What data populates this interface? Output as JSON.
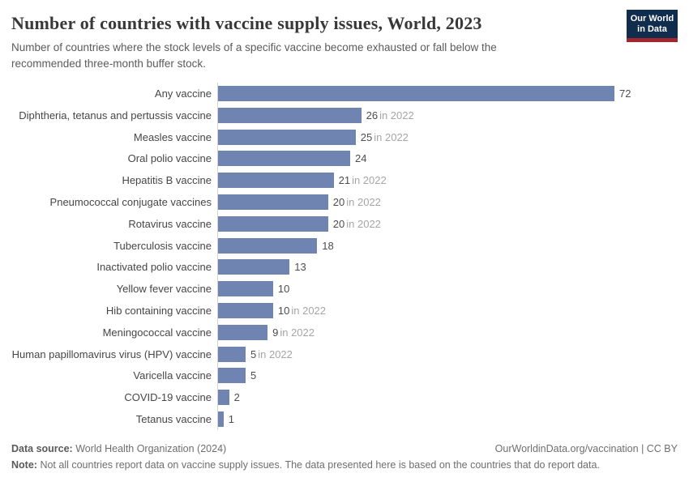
{
  "header": {
    "title": "Number of countries with vaccine supply issues, World, 2023",
    "subtitle": "Number of countries where the stock levels of a specific vaccine become exhausted or fall below the recommended three-month buffer stock.",
    "logo": {
      "line1": "Our World",
      "line2": "in Data"
    }
  },
  "chart_data": {
    "type": "bar",
    "orientation": "horizontal",
    "title": "Number of countries with vaccine supply issues, World, 2023",
    "categories": [
      "Any vaccine",
      "Diphtheria, tetanus and pertussis vaccine",
      "Measles vaccine",
      "Oral polio vaccine",
      "Hepatitis B vaccine",
      "Pneumococcal conjugate vaccines",
      "Rotavirus vaccine",
      "Tuberculosis vaccine",
      "Inactivated polio vaccine",
      "Yellow fever vaccine",
      "Hib containing vaccine",
      "Meningococcal vaccine",
      "Human papillomavirus virus (HPV) vaccine",
      "Varicella vaccine",
      "COVID-19 vaccine",
      "Tetanus vaccine"
    ],
    "values": [
      72,
      26,
      25,
      24,
      21,
      20,
      20,
      18,
      13,
      10,
      10,
      9,
      5,
      5,
      2,
      1
    ],
    "value_suffixes": [
      "",
      "in 2022",
      "in 2022",
      "",
      "in 2022",
      "in 2022",
      "in 2022",
      "",
      "",
      "",
      "in 2022",
      "in 2022",
      "in 2022",
      "",
      "",
      ""
    ],
    "xlim": [
      0,
      72
    ],
    "xlabel": "",
    "ylabel": "",
    "grid": false,
    "legend": "none",
    "bar_color": "#6f84b1"
  },
  "footer": {
    "data_source_label": "Data source:",
    "data_source": "World Health Organization (2024)",
    "attribution": "OurWorldinData.org/vaccination | CC BY",
    "note_label": "Note:",
    "note": "Not all countries report data on vaccine supply issues. The data presented here is based on the countries that do report data."
  },
  "colors": {
    "bar": "#6f84b1",
    "axis_line": "#d4d4d4",
    "title_text": "#383838",
    "subtitle_text": "#5b5b5b",
    "value_text": "#4d4d4d",
    "suffix_text": "#a5a5a5",
    "logo_navy": "#102d4e",
    "logo_red": "#a3262e"
  }
}
